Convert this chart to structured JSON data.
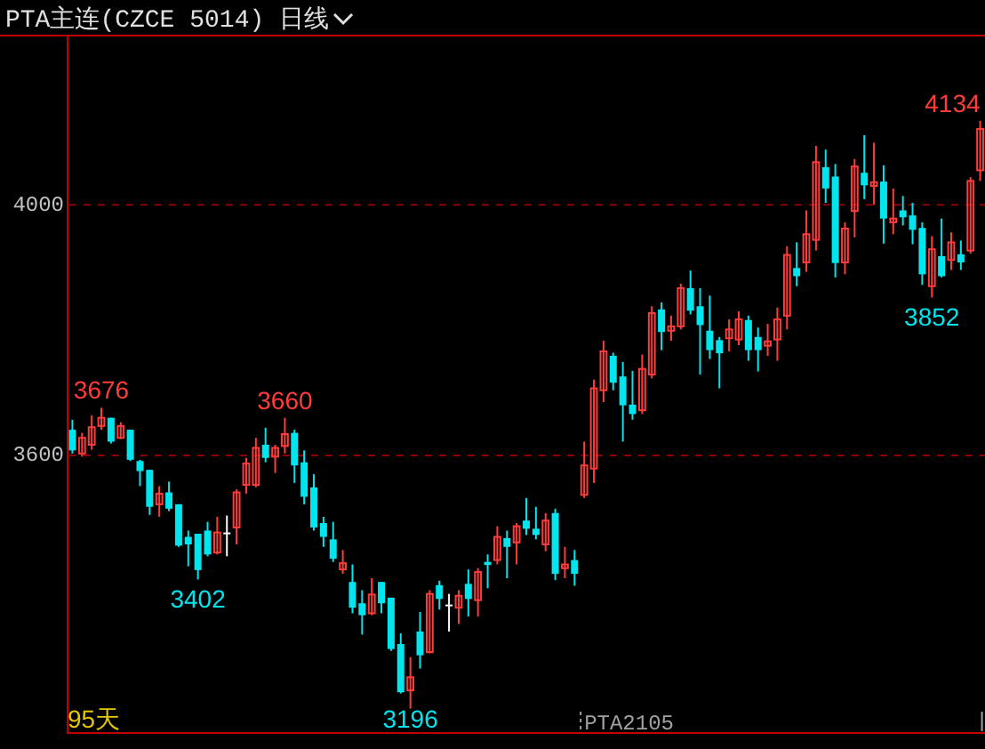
{
  "chart_data": {
    "type": "candlestick",
    "title": "PTA主连(CZCE 5014)  日线",
    "categories": [
      null,
      null,
      null,
      null,
      null,
      null,
      null,
      null,
      null,
      null,
      null,
      null,
      null,
      null,
      null,
      null,
      null,
      null,
      null,
      null,
      null,
      null,
      null,
      null,
      null,
      null,
      null,
      null,
      null,
      null,
      null,
      null,
      null,
      null,
      null,
      null,
      null,
      null,
      null,
      null,
      null,
      null,
      null,
      null,
      null,
      null,
      null,
      null,
      null,
      null,
      null,
      null,
      null,
      null,
      null,
      null,
      null,
      null,
      null,
      null,
      null,
      null,
      null,
      null,
      null,
      null,
      null,
      null,
      null,
      null,
      null,
      null,
      null,
      null,
      null,
      null,
      null,
      null,
      null,
      null,
      null,
      null,
      null,
      null,
      null,
      null,
      null,
      null,
      null,
      null,
      null,
      null,
      null,
      null,
      null
    ],
    "ohlc": [
      [
        3641,
        3657,
        3603,
        3608
      ],
      [
        3603,
        3636,
        3598,
        3628
      ],
      [
        3617,
        3664,
        3609,
        3645
      ],
      [
        3647,
        3676,
        3641,
        3660
      ],
      [
        3660,
        3660,
        3619,
        3622
      ],
      [
        3628,
        3653,
        3626,
        3647
      ],
      [
        3641,
        3641,
        3591,
        3593
      ],
      [
        3591,
        3593,
        3551,
        3575
      ],
      [
        3577,
        3577,
        3505,
        3518
      ],
      [
        3522,
        3551,
        3502,
        3539
      ],
      [
        3541,
        3558,
        3511,
        3515
      ],
      [
        3522,
        3522,
        3454,
        3456
      ],
      [
        3470,
        3480,
        3423,
        3458
      ],
      [
        3475,
        3475,
        3402,
        3417
      ],
      [
        3480,
        3494,
        3439,
        3442
      ],
      [
        3445,
        3502,
        3442,
        3477
      ],
      [
        3477,
        3504,
        3439,
        3477
      ],
      [
        3485,
        3546,
        3458,
        3541
      ],
      [
        3553,
        3596,
        3539,
        3587
      ],
      [
        3553,
        3628,
        3549,
        3612
      ],
      [
        3617,
        3644,
        3589,
        3596
      ],
      [
        3598,
        3617,
        3572,
        3612
      ],
      [
        3615,
        3660,
        3603,
        3634
      ],
      [
        3636,
        3641,
        3556,
        3584
      ],
      [
        3589,
        3608,
        3522,
        3534
      ],
      [
        3549,
        3570,
        3480,
        3485
      ],
      [
        3492,
        3502,
        3454,
        3470
      ],
      [
        3466,
        3494,
        3430,
        3435
      ],
      [
        3418,
        3449,
        3411,
        3428
      ],
      [
        3398,
        3426,
        3348,
        3357
      ],
      [
        3364,
        3385,
        3314,
        3345
      ],
      [
        3348,
        3404,
        3345,
        3378
      ],
      [
        3398,
        3398,
        3348,
        3364
      ],
      [
        3373,
        3373,
        3288,
        3291
      ],
      [
        3299,
        3316,
        3220,
        3222
      ],
      [
        3225,
        3278,
        3196,
        3246
      ],
      [
        3319,
        3350,
        3260,
        3281
      ],
      [
        3286,
        3385,
        3284,
        3379
      ],
      [
        3393,
        3400,
        3354,
        3371
      ],
      [
        3362,
        3379,
        3319,
        3362
      ],
      [
        3357,
        3385,
        3331,
        3376
      ],
      [
        3395,
        3418,
        3343,
        3371
      ],
      [
        3369,
        3420,
        3343,
        3414
      ],
      [
        3430,
        3442,
        3388,
        3425
      ],
      [
        3433,
        3487,
        3426,
        3470
      ],
      [
        3468,
        3480,
        3404,
        3454
      ],
      [
        3461,
        3492,
        3426,
        3487
      ],
      [
        3496,
        3532,
        3473,
        3483
      ],
      [
        3483,
        3518,
        3466,
        3473
      ],
      [
        3458,
        3508,
        3447,
        3496
      ],
      [
        3508,
        3515,
        3401,
        3411
      ],
      [
        3420,
        3454,
        3404,
        3426
      ],
      [
        3433,
        3449,
        3392,
        3411
      ],
      [
        3537,
        3622,
        3532,
        3584
      ],
      [
        3579,
        3721,
        3556,
        3707
      ],
      [
        3704,
        3783,
        3685,
        3766
      ],
      [
        3759,
        3764,
        3704,
        3716
      ],
      [
        3726,
        3749,
        3622,
        3680
      ],
      [
        3681,
        3735,
        3657,
        3666
      ],
      [
        3672,
        3761,
        3666,
        3738
      ],
      [
        3729,
        3838,
        3723,
        3827
      ],
      [
        3833,
        3844,
        3768,
        3797
      ],
      [
        3799,
        3823,
        3783,
        3806
      ],
      [
        3806,
        3874,
        3801,
        3867
      ],
      [
        3867,
        3895,
        3825,
        3831
      ],
      [
        3838,
        3867,
        3729,
        3808
      ],
      [
        3799,
        3855,
        3754,
        3768
      ],
      [
        3784,
        3789,
        3707,
        3763
      ],
      [
        3787,
        3817,
        3766,
        3801
      ],
      [
        3785,
        3830,
        3776,
        3817
      ],
      [
        3816,
        3823,
        3751,
        3768
      ],
      [
        3789,
        3804,
        3734,
        3768
      ],
      [
        3775,
        3810,
        3759,
        3782
      ],
      [
        3785,
        3836,
        3751,
        3817
      ],
      [
        3823,
        3934,
        3801,
        3920
      ],
      [
        3899,
        3940,
        3870,
        3886
      ],
      [
        3908,
        3991,
        3893,
        3953
      ],
      [
        3944,
        4094,
        3927,
        4068
      ],
      [
        4060,
        4088,
        4003,
        4026
      ],
      [
        4045,
        4065,
        3884,
        3907
      ],
      [
        3908,
        3972,
        3889,
        3962
      ],
      [
        3990,
        4073,
        3948,
        4061
      ],
      [
        4051,
        4111,
        4009,
        4031
      ],
      [
        4030,
        4099,
        4000,
        4036
      ],
      [
        4037,
        4063,
        3938,
        3978
      ],
      [
        3972,
        4026,
        3953,
        3978
      ],
      [
        3991,
        4014,
        3967,
        3980
      ],
      [
        3983,
        4003,
        3937,
        3960
      ],
      [
        3963,
        3972,
        3872,
        3889
      ],
      [
        3870,
        3950,
        3852,
        3929
      ],
      [
        3918,
        3978,
        3884,
        3886
      ],
      [
        3912,
        3956,
        3896,
        3940
      ],
      [
        3921,
        3943,
        3896,
        3908
      ],
      [
        3927,
        4044,
        3922,
        4038
      ],
      [
        4055,
        4134,
        4038,
        4121
      ]
    ],
    "ylim": [
      3157,
      4270
    ],
    "yticks": [
      3600,
      4000
    ],
    "grid": "y",
    "tick_labels": "y",
    "annotations": [
      {
        "text": "3676",
        "y": 3676
      },
      {
        "text": "3402",
        "y": 3402
      },
      {
        "text": "3660",
        "y": 3660
      },
      {
        "text": "3196",
        "y": 3196
      },
      "4134",
      {
        "text": "3852",
        "y": 3852
      },
      "95天",
      "PTA2105"
    ]
  }
}
